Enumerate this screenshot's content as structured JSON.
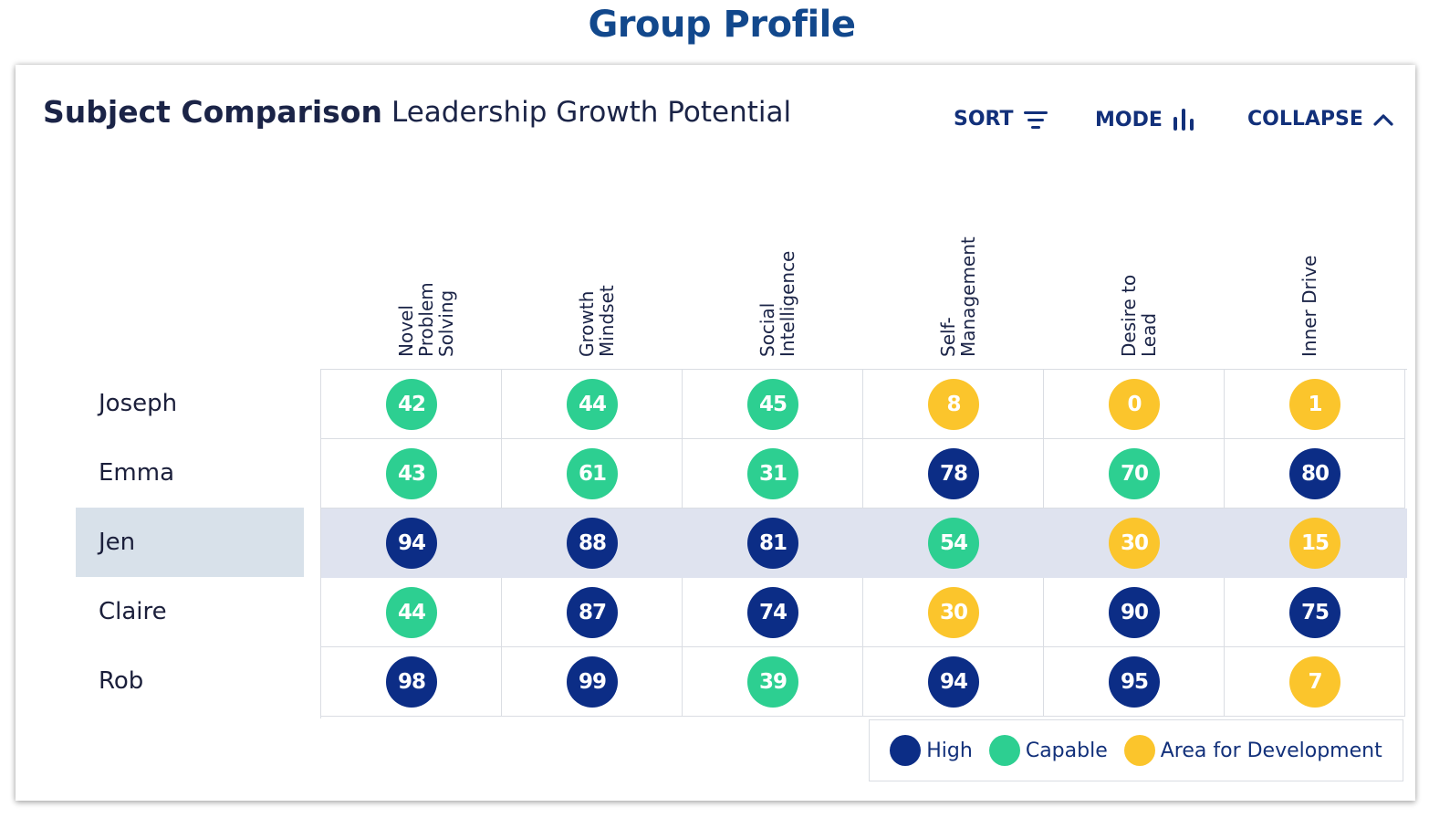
{
  "page_title": "Group Profile",
  "card": {
    "title": "Subject Comparison",
    "subtitle": "Leadership Growth Potential"
  },
  "actions": {
    "sort": {
      "label": "SORT",
      "icon": "sort-lines-icon"
    },
    "mode": {
      "label": "MODE",
      "icon": "bar-chart-icon"
    },
    "collapse": {
      "label": "COLLAPSE",
      "icon": "chevron-up-icon"
    }
  },
  "columns": [
    "Novel\nProblem\nSolving",
    "Growth\nMindset",
    "Social\nIntelligence",
    "Self-\nManagement",
    "Desire to\nLead",
    "Inner Drive"
  ],
  "rows": [
    {
      "name": "Joseph",
      "highlighted": false,
      "scores": [
        {
          "value": "42",
          "level": "capable"
        },
        {
          "value": "44",
          "level": "capable"
        },
        {
          "value": "45",
          "level": "capable"
        },
        {
          "value": "8",
          "level": "development"
        },
        {
          "value": "0",
          "level": "development"
        },
        {
          "value": "1",
          "level": "development"
        }
      ]
    },
    {
      "name": "Emma",
      "highlighted": false,
      "scores": [
        {
          "value": "43",
          "level": "capable"
        },
        {
          "value": "61",
          "level": "capable"
        },
        {
          "value": "31",
          "level": "capable"
        },
        {
          "value": "78",
          "level": "high"
        },
        {
          "value": "70",
          "level": "capable"
        },
        {
          "value": "80",
          "level": "high"
        }
      ]
    },
    {
      "name": "Jen",
      "highlighted": true,
      "scores": [
        {
          "value": "94",
          "level": "high"
        },
        {
          "value": "88",
          "level": "high"
        },
        {
          "value": "81",
          "level": "high"
        },
        {
          "value": "54",
          "level": "capable"
        },
        {
          "value": "30",
          "level": "development"
        },
        {
          "value": "15",
          "level": "development"
        }
      ]
    },
    {
      "name": "Claire",
      "highlighted": false,
      "scores": [
        {
          "value": "44",
          "level": "capable"
        },
        {
          "value": "87",
          "level": "high"
        },
        {
          "value": "74",
          "level": "high"
        },
        {
          "value": "30",
          "level": "development"
        },
        {
          "value": "90",
          "level": "high"
        },
        {
          "value": "75",
          "level": "high"
        }
      ]
    },
    {
      "name": "Rob",
      "highlighted": false,
      "scores": [
        {
          "value": "98",
          "level": "high"
        },
        {
          "value": "99",
          "level": "high"
        },
        {
          "value": "39",
          "level": "capable"
        },
        {
          "value": "94",
          "level": "high"
        },
        {
          "value": "95",
          "level": "high"
        },
        {
          "value": "7",
          "level": "development"
        }
      ]
    }
  ],
  "legend": [
    {
      "key": "high",
      "label": "High",
      "color": "#0c2d86"
    },
    {
      "key": "capable",
      "label": "Capable",
      "color": "#2dcf91"
    },
    {
      "key": "development",
      "label": "Area for Development",
      "color": "#fbc52c"
    }
  ]
}
